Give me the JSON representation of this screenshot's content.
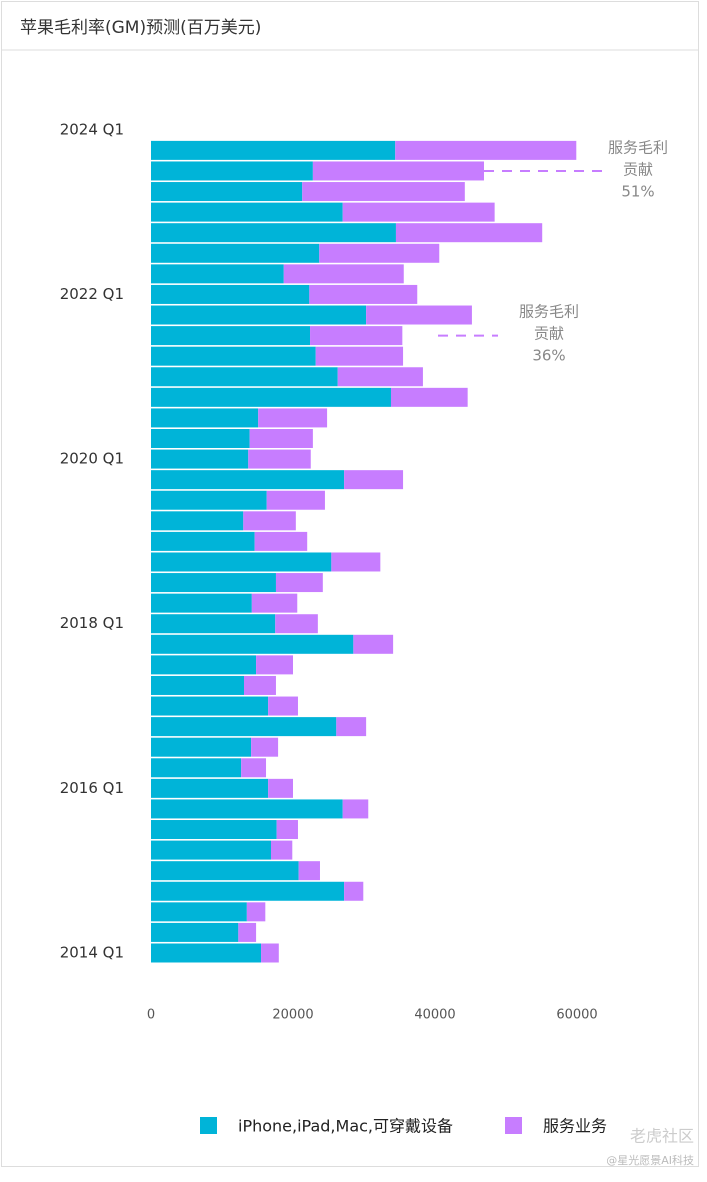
{
  "chart_data": {
    "type": "stacked-barh",
    "title": "苹果毛利率(GM)预测(百万美元)",
    "categories": [
      "2014 Q1",
      null,
      null,
      null,
      null,
      null,
      null,
      null,
      "2016 Q1",
      null,
      null,
      null,
      null,
      null,
      null,
      null,
      "2018 Q1",
      null,
      null,
      null,
      null,
      null,
      null,
      null,
      "2020 Q1",
      null,
      null,
      null,
      null,
      null,
      null,
      null,
      "2022 Q1",
      null,
      null,
      null,
      null,
      null,
      null,
      null,
      "2024 Q1"
    ],
    "series": [
      {
        "name": "iPhone,iPad,Mac,可穿戴设备",
        "color": "#00b4d8",
        "values": [
          15500,
          12300,
          13500,
          27200,
          20800,
          16900,
          17700,
          27000,
          16500,
          12700,
          14100,
          26100,
          16500,
          13100,
          14800,
          28500,
          17500,
          14200,
          17600,
          25400,
          14600,
          13000,
          16300,
          27200,
          13700,
          13900,
          15100,
          33800,
          26300,
          23200,
          22400,
          30300,
          22300,
          18700,
          23700,
          34500,
          27000,
          21300,
          22800,
          34400,
          null
        ]
      },
      {
        "name": "服务业务",
        "color": "#c77dff",
        "values": [
          2500,
          2500,
          2600,
          2700,
          3000,
          3000,
          3000,
          3600,
          3500,
          3500,
          3800,
          4200,
          4200,
          4500,
          5200,
          5600,
          6000,
          6400,
          6600,
          6900,
          7400,
          7400,
          8200,
          8300,
          8800,
          8900,
          9700,
          10800,
          12000,
          12300,
          13000,
          14900,
          15200,
          16900,
          16900,
          20600,
          21400,
          22900,
          24100,
          25500,
          null
        ]
      }
    ],
    "xlim": [
      0,
      70000
    ],
    "xticks": [
      0,
      20000,
      40000,
      60000
    ],
    "annotations": [
      {
        "lines": [
          "服务毛利",
          "贡献",
          "51%"
        ],
        "color": "#c77dff"
      },
      {
        "lines": [
          "服务毛利",
          "贡献",
          "36%"
        ],
        "color": "#c77dff"
      }
    ],
    "legend": "bottom",
    "watermark": [
      "老虎社区",
      "@星光愿景AI科技"
    ]
  }
}
